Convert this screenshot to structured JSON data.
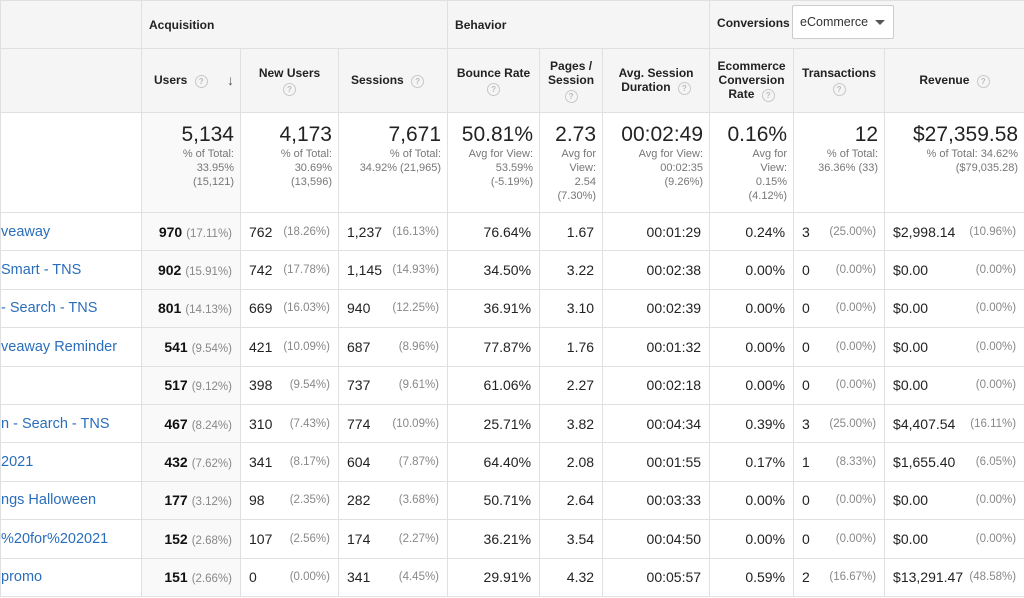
{
  "groups": {
    "acquisition": "Acquisition",
    "behavior": "Behavior",
    "conversions": "Conversions",
    "conversions_select": "eCommerce"
  },
  "columns": {
    "users": "Users",
    "new_users": "New Users",
    "sessions": "Sessions",
    "bounce_rate": "Bounce Rate",
    "pages_session_1": "Pages /",
    "pages_session_2": "Session",
    "avg_session_1": "Avg. Session",
    "avg_session_2": "Duration",
    "ecom_1": "Ecommerce",
    "ecom_2": "Conversion",
    "ecom_3": "Rate",
    "transactions": "Transactions",
    "revenue": "Revenue",
    "help_glyph": "?",
    "sort_glyph": "↓"
  },
  "totals": {
    "users": {
      "value": "5,134",
      "l1": "% of Total:",
      "l2": "33.95%",
      "l3": "(15,121)"
    },
    "new_users": {
      "value": "4,173",
      "l1": "% of Total:",
      "l2": "30.69%",
      "l3": "(13,596)"
    },
    "sessions": {
      "value": "7,671",
      "l1": "% of Total:",
      "l2": "34.92% (21,965)"
    },
    "bounce_rate": {
      "value": "50.81%",
      "l1": "Avg for View:",
      "l2": "53.59%",
      "l3": "(-5.19%)"
    },
    "pages_session": {
      "value": "2.73",
      "l1": "Avg for",
      "l2": "View:",
      "l3": "2.54",
      "l4": "(7.30%)"
    },
    "avg_session": {
      "value": "00:02:49",
      "l1": "Avg for View:",
      "l2": "00:02:35",
      "l3": "(9.26%)"
    },
    "ecom_rate": {
      "value": "0.16%",
      "l1": "Avg for",
      "l2": "View:",
      "l3": "0.15%",
      "l4": "(4.12%)"
    },
    "transactions": {
      "value": "12",
      "l1": "% of Total:",
      "l2": "36.36% (33)"
    },
    "revenue": {
      "value": "$27,359.58",
      "l1": "% of Total: 34.62%",
      "l2": "($79,035.28)"
    }
  },
  "rows": [
    {
      "name": "veaway",
      "users": "970",
      "users_pct": "(17.11%)",
      "new_users": "762",
      "new_users_pct": "(18.26%)",
      "sessions": "1,237",
      "sessions_pct": "(16.13%)",
      "bounce": "76.64%",
      "pages": "1.67",
      "duration": "00:01:29",
      "ecom": "0.24%",
      "trans": "3",
      "trans_pct": "(25.00%)",
      "revenue": "$2,998.14",
      "revenue_pct": "(10.96%)"
    },
    {
      "name": "Smart - TNS",
      "users": "902",
      "users_pct": "(15.91%)",
      "new_users": "742",
      "new_users_pct": "(17.78%)",
      "sessions": "1,145",
      "sessions_pct": "(14.93%)",
      "bounce": "34.50%",
      "pages": "3.22",
      "duration": "00:02:38",
      "ecom": "0.00%",
      "trans": "0",
      "trans_pct": "(0.00%)",
      "revenue": "$0.00",
      "revenue_pct": "(0.00%)"
    },
    {
      "name": "- Search - TNS",
      "users": "801",
      "users_pct": "(14.13%)",
      "new_users": "669",
      "new_users_pct": "(16.03%)",
      "sessions": "940",
      "sessions_pct": "(12.25%)",
      "bounce": "36.91%",
      "pages": "3.10",
      "duration": "00:02:39",
      "ecom": "0.00%",
      "trans": "0",
      "trans_pct": "(0.00%)",
      "revenue": "$0.00",
      "revenue_pct": "(0.00%)"
    },
    {
      "name": "veaway Reminder",
      "users": "541",
      "users_pct": "(9.54%)",
      "new_users": "421",
      "new_users_pct": "(10.09%)",
      "sessions": "687",
      "sessions_pct": "(8.96%)",
      "bounce": "77.87%",
      "pages": "1.76",
      "duration": "00:01:32",
      "ecom": "0.00%",
      "trans": "0",
      "trans_pct": "(0.00%)",
      "revenue": "$0.00",
      "revenue_pct": "(0.00%)"
    },
    {
      "name": "",
      "users": "517",
      "users_pct": "(9.12%)",
      "new_users": "398",
      "new_users_pct": "(9.54%)",
      "sessions": "737",
      "sessions_pct": "(9.61%)",
      "bounce": "61.06%",
      "pages": "2.27",
      "duration": "00:02:18",
      "ecom": "0.00%",
      "trans": "0",
      "trans_pct": "(0.00%)",
      "revenue": "$0.00",
      "revenue_pct": "(0.00%)"
    },
    {
      "name": "n - Search - TNS",
      "users": "467",
      "users_pct": "(8.24%)",
      "new_users": "310",
      "new_users_pct": "(7.43%)",
      "sessions": "774",
      "sessions_pct": "(10.09%)",
      "bounce": "25.71%",
      "pages": "3.82",
      "duration": "00:04:34",
      "ecom": "0.39%",
      "trans": "3",
      "trans_pct": "(25.00%)",
      "revenue": "$4,407.54",
      "revenue_pct": "(16.11%)"
    },
    {
      "name": "2021",
      "users": "432",
      "users_pct": "(7.62%)",
      "new_users": "341",
      "new_users_pct": "(8.17%)",
      "sessions": "604",
      "sessions_pct": "(7.87%)",
      "bounce": "64.40%",
      "pages": "2.08",
      "duration": "00:01:55",
      "ecom": "0.17%",
      "trans": "1",
      "trans_pct": "(8.33%)",
      "revenue": "$1,655.40",
      "revenue_pct": "(6.05%)"
    },
    {
      "name": "ngs Halloween",
      "users": "177",
      "users_pct": "(3.12%)",
      "new_users": "98",
      "new_users_pct": "(2.35%)",
      "sessions": "282",
      "sessions_pct": "(3.68%)",
      "bounce": "50.71%",
      "pages": "2.64",
      "duration": "00:03:33",
      "ecom": "0.00%",
      "trans": "0",
      "trans_pct": "(0.00%)",
      "revenue": "$0.00",
      "revenue_pct": "(0.00%)"
    },
    {
      "name": "%20for%202021",
      "users": "152",
      "users_pct": "(2.68%)",
      "new_users": "107",
      "new_users_pct": "(2.56%)",
      "sessions": "174",
      "sessions_pct": "(2.27%)",
      "bounce": "36.21%",
      "pages": "3.54",
      "duration": "00:04:50",
      "ecom": "0.00%",
      "trans": "0",
      "trans_pct": "(0.00%)",
      "revenue": "$0.00",
      "revenue_pct": "(0.00%)"
    },
    {
      "name": "promo",
      "users": "151",
      "users_pct": "(2.66%)",
      "new_users": "0",
      "new_users_pct": "(0.00%)",
      "sessions": "341",
      "sessions_pct": "(4.45%)",
      "bounce": "29.91%",
      "pages": "4.32",
      "duration": "00:05:57",
      "ecom": "0.59%",
      "trans": "2",
      "trans_pct": "(16.67%)",
      "revenue": "$13,291.47",
      "revenue_pct": "(48.58%)"
    }
  ]
}
